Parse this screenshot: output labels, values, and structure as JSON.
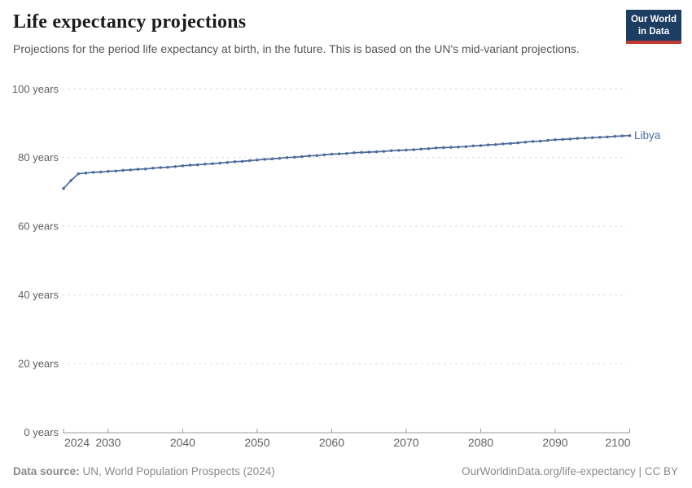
{
  "header": {
    "title": "Life expectancy projections",
    "subtitle": "Projections for the period life expectancy at birth, in the future. This is based on the UN's mid-variant projections.",
    "logo": {
      "line1": "Our World",
      "line2": "in Data"
    }
  },
  "chart_data": {
    "type": "line",
    "title": "Life expectancy projections",
    "xlabel": "",
    "ylabel": "",
    "xlim": [
      2024,
      2100
    ],
    "ylim": [
      0,
      100
    ],
    "x_start": 2024,
    "x_step": 1,
    "x_ticks": [
      2024,
      2030,
      2040,
      2050,
      2060,
      2070,
      2080,
      2090,
      2100
    ],
    "y_ticks": [
      0,
      20,
      40,
      60,
      80,
      100
    ],
    "y_tick_suffix": " years",
    "grid": "horizontal-dashed",
    "markers": true,
    "legend_position": "end-of-line",
    "series": [
      {
        "name": "Libya",
        "color": "#4C6A9C",
        "values": [
          71.0,
          73.3,
          75.3,
          75.5,
          75.7,
          75.8,
          76.0,
          76.1,
          76.3,
          76.4,
          76.6,
          76.7,
          76.9,
          77.1,
          77.2,
          77.4,
          77.6,
          77.8,
          77.9,
          78.1,
          78.2,
          78.4,
          78.6,
          78.8,
          78.9,
          79.1,
          79.3,
          79.5,
          79.6,
          79.8,
          80.0,
          80.1,
          80.3,
          80.5,
          80.6,
          80.8,
          81.0,
          81.1,
          81.2,
          81.4,
          81.5,
          81.6,
          81.7,
          81.8,
          82.0,
          82.1,
          82.2,
          82.3,
          82.5,
          82.6,
          82.8,
          82.9,
          83.0,
          83.1,
          83.2,
          83.4,
          83.5,
          83.7,
          83.8,
          84.0,
          84.1,
          84.3,
          84.5,
          84.7,
          84.8,
          85.0,
          85.2,
          85.3,
          85.4,
          85.6,
          85.7,
          85.8,
          85.9,
          86.0,
          86.2,
          86.3,
          86.4
        ]
      }
    ]
  },
  "footer": {
    "source_label": "Data source:",
    "source_text": " UN, World Population Prospects (2024)",
    "rights": "OurWorldinData.org/life-expectancy | CC BY"
  },
  "colors": {
    "navy": "#1d3d63",
    "red": "#bf3b32",
    "grid": "#dcdcdc",
    "axis": "#9a9a9a",
    "tick_label": "#616161",
    "footer_text": "#8a8a8a"
  }
}
